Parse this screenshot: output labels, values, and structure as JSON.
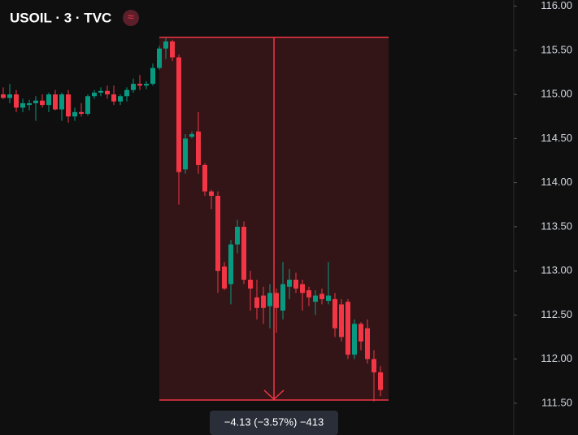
{
  "chart_data": {
    "type": "candlestick",
    "title": "USOIL · 3 · TVC",
    "icon": "≈",
    "annotation": "−4.13 (−3.57%) −413",
    "up_color": "#089981",
    "down_color": "#f23645",
    "ylim": [
      111.14,
      116.07
    ],
    "yticks": [
      {
        "value": 111.5,
        "label": "111.50"
      },
      {
        "value": 112,
        "label": "112.00"
      },
      {
        "value": 112.5,
        "label": "112.50"
      },
      {
        "value": 113,
        "label": "113.00"
      },
      {
        "value": 113.5,
        "label": "113.50"
      },
      {
        "value": 114,
        "label": "114.00"
      },
      {
        "value": 114.5,
        "label": "114.50"
      },
      {
        "value": 115,
        "label": "115.00"
      },
      {
        "value": 115.5,
        "label": "115.50"
      },
      {
        "value": 116,
        "label": "116.00"
      }
    ],
    "open": [
      115.0,
      114.96,
      115.0,
      114.85,
      114.88,
      114.9,
      114.93,
      114.88,
      115.0,
      114.83,
      115.0,
      114.75,
      114.8,
      114.78,
      114.98,
      115.02,
      115.04,
      115.0,
      114.92,
      114.98,
      115.05,
      115.12,
      115.1,
      115.12,
      115.3,
      115.52,
      115.6,
      115.42,
      114.15,
      114.52,
      114.58,
      114.2,
      113.9,
      113.85,
      113.05,
      112.85,
      113.3,
      113.5,
      112.9,
      112.7,
      112.72,
      112.6,
      112.75,
      112.55,
      112.82,
      112.9,
      112.85,
      112.78,
      112.65,
      112.74,
      112.66,
      112.68,
      112.62,
      112.65,
      112.05,
      112.4,
      112.35,
      112.0,
      111.85
    ],
    "high": [
      115.08,
      115.12,
      115.05,
      114.95,
      114.94,
      114.98,
      115.0,
      115.02,
      115.05,
      115.02,
      115.05,
      114.85,
      114.9,
      115.0,
      115.05,
      115.08,
      115.1,
      115.1,
      115.0,
      115.08,
      115.18,
      115.22,
      115.15,
      115.35,
      115.55,
      115.64,
      115.62,
      115.45,
      114.55,
      114.58,
      114.8,
      114.22,
      113.92,
      113.9,
      113.1,
      113.35,
      113.58,
      113.56,
      113.0,
      112.9,
      112.82,
      112.85,
      112.8,
      113.1,
      113.02,
      112.98,
      112.9,
      112.82,
      112.78,
      112.8,
      113.1,
      112.75,
      112.68,
      112.68,
      112.45,
      112.42,
      112.45,
      112.1,
      111.92
    ],
    "low": [
      114.95,
      114.9,
      114.8,
      114.8,
      114.82,
      114.7,
      114.85,
      114.8,
      114.82,
      114.7,
      114.68,
      114.7,
      114.75,
      114.76,
      114.95,
      114.98,
      114.95,
      114.88,
      114.88,
      114.92,
      115.02,
      115.05,
      115.06,
      115.1,
      115.28,
      115.4,
      115.38,
      113.75,
      114.1,
      114.5,
      114.1,
      113.85,
      113.7,
      112.75,
      112.78,
      112.62,
      113.2,
      112.85,
      112.55,
      112.45,
      112.4,
      112.35,
      112.3,
      112.45,
      112.68,
      112.75,
      112.55,
      112.6,
      112.5,
      112.62,
      112.62,
      112.25,
      112.2,
      112.0,
      112.0,
      112.1,
      111.95,
      111.52,
      111.58
    ],
    "close": [
      114.96,
      115.0,
      114.85,
      114.9,
      114.9,
      114.93,
      114.88,
      115.0,
      114.83,
      115.0,
      114.75,
      114.8,
      114.78,
      114.98,
      115.02,
      115.04,
      115.0,
      114.92,
      114.98,
      115.05,
      115.12,
      115.1,
      115.12,
      115.3,
      115.52,
      115.6,
      115.42,
      114.12,
      114.5,
      114.55,
      114.2,
      113.9,
      113.85,
      113.0,
      112.8,
      113.3,
      113.5,
      112.9,
      112.8,
      112.58,
      112.58,
      112.75,
      112.58,
      112.85,
      112.9,
      112.8,
      112.75,
      112.7,
      112.72,
      112.68,
      112.72,
      112.35,
      112.25,
      112.05,
      112.4,
      112.2,
      112.0,
      111.85,
      111.65
    ]
  }
}
